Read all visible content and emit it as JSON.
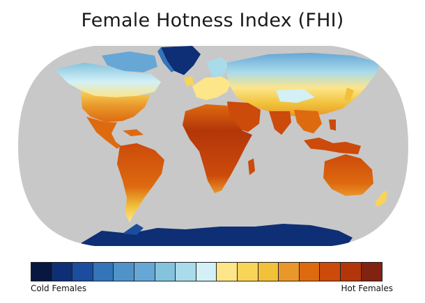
{
  "map": {
    "title": "Female Hotness Index (FHI)",
    "projection": "robinson-like",
    "ocean_color": "#c8c8c8",
    "background_color": "#ffffff",
    "legend": {
      "low_label": "Cold Females",
      "high_label": "Hot Females",
      "colors": [
        "#08173f",
        "#0e2f75",
        "#1a4d9d",
        "#3474b8",
        "#4f93c9",
        "#66a7d6",
        "#84c3dd",
        "#a9dbea",
        "#d2f0f6",
        "#fde58a",
        "#f8d457",
        "#f1c13a",
        "#e9962a",
        "#de6a10",
        "#cc4a0a",
        "#b3360a",
        "#822210"
      ]
    },
    "regions": [
      {
        "name": "greenland",
        "level": 1
      },
      {
        "name": "arctic-north-america",
        "level": 6
      },
      {
        "name": "canada",
        "level": 8
      },
      {
        "name": "usa-north",
        "level": 10
      },
      {
        "name": "usa-south",
        "level": 13
      },
      {
        "name": "mexico-central-america",
        "level": 15
      },
      {
        "name": "south-america",
        "level": 15
      },
      {
        "name": "patagonia",
        "level": 10
      },
      {
        "name": "europe",
        "level": 10
      },
      {
        "name": "scandinavia",
        "level": 7
      },
      {
        "name": "siberia",
        "level": 5
      },
      {
        "name": "central-asia",
        "level": 11
      },
      {
        "name": "tibet",
        "level": 8
      },
      {
        "name": "north-africa",
        "level": 15
      },
      {
        "name": "subsaharan-africa",
        "level": 16
      },
      {
        "name": "middle-east",
        "level": 15
      },
      {
        "name": "india",
        "level": 15
      },
      {
        "name": "southeast-asia",
        "level": 15
      },
      {
        "name": "indonesia",
        "level": 15
      },
      {
        "name": "australia",
        "level": 14
      },
      {
        "name": "new-zealand",
        "level": 10
      },
      {
        "name": "antarctica",
        "level": 1
      }
    ]
  }
}
